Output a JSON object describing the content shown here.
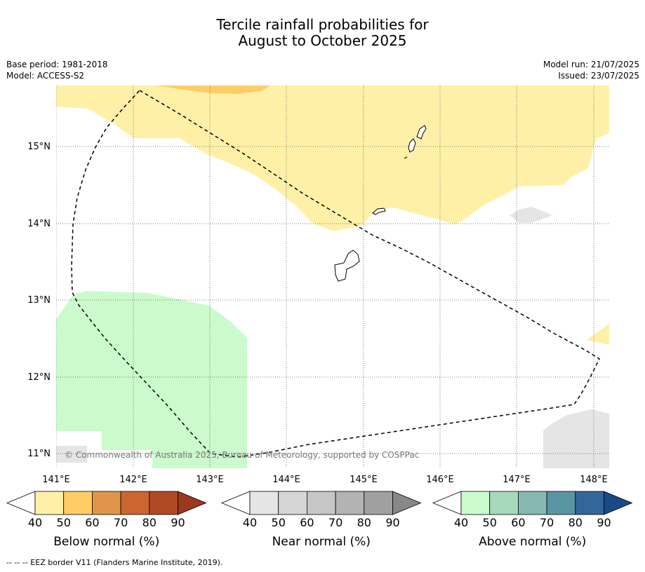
{
  "title": {
    "line1": "Tercile rainfall probabilities for",
    "line2": "August to October 2025"
  },
  "meta": {
    "base_period": "Base period: 1981-2018",
    "model": "Model: ACCESS-S2",
    "model_run": "Model run: 21/07/2025",
    "issued": "Issued: 23/07/2025"
  },
  "map": {
    "lat_labels": [
      "15°N",
      "14°N",
      "13°N",
      "12°N",
      "11°N"
    ],
    "lon_labels": [
      "141°E",
      "142°E",
      "143°E",
      "144°E",
      "145°E",
      "146°E",
      "147°E",
      "148°E"
    ],
    "copyright": "© Commonwealth of Australia 2025, Bureau of Meteorology, supported by COSPPac"
  },
  "colorbars": [
    {
      "label": "Below normal (%)",
      "ticks": [
        "40",
        "50",
        "60",
        "70",
        "80",
        "90"
      ],
      "colors": [
        "#fff0a8",
        "#ffcc66",
        "#e09548",
        "#cc6630",
        "#b04a25",
        "#9a3820"
      ]
    },
    {
      "label": "Near normal (%)",
      "ticks": [
        "40",
        "50",
        "60",
        "70",
        "80",
        "90"
      ],
      "colors": [
        "#e5e5e5",
        "#d6d6d6",
        "#c6c6c6",
        "#b3b3b3",
        "#a0a0a0",
        "#888888"
      ]
    },
    {
      "label": "Above normal (%)",
      "ticks": [
        "40",
        "50",
        "60",
        "70",
        "80",
        "90"
      ],
      "colors": [
        "#cbfbcc",
        "#a8d8bc",
        "#85b9b2",
        "#5a95a4",
        "#336699",
        "#1a4a85"
      ]
    }
  ],
  "footer": "--  --  -- EEZ border V11 (Flanders Marine Institute, 2019)."
}
